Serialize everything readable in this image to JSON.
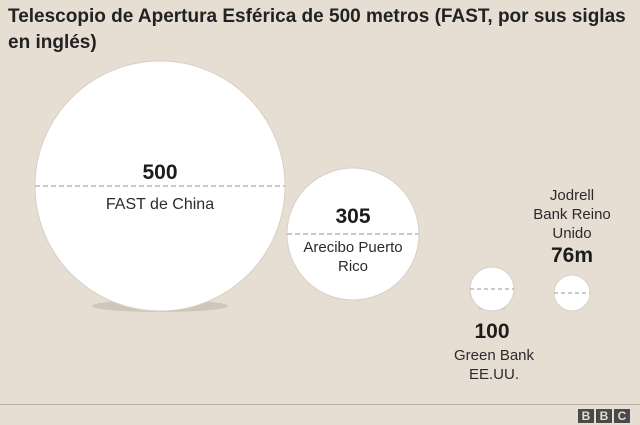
{
  "title": "Telescopio de Apertura Esférica de 500 metros (FAST, por sus siglas en inglés)",
  "telescopes": [
    {
      "value": "500",
      "name": "FAST de China"
    },
    {
      "value": "305",
      "name_line1": "Arecibo Puerto",
      "name_line2": "Rico"
    },
    {
      "value": "100",
      "name_line1": "Green Bank",
      "name_line2": "EE.UU."
    },
    {
      "value": "76m",
      "name_line1": "Jodrell",
      "name_line2": "Bank Reino",
      "name_line3": "Unido"
    }
  ],
  "logo": {
    "letters": [
      "B",
      "B",
      "C"
    ]
  },
  "colors": {
    "background": "#e6ddd3",
    "circle": "#ffffff",
    "dash": "#aaaaaa"
  }
}
